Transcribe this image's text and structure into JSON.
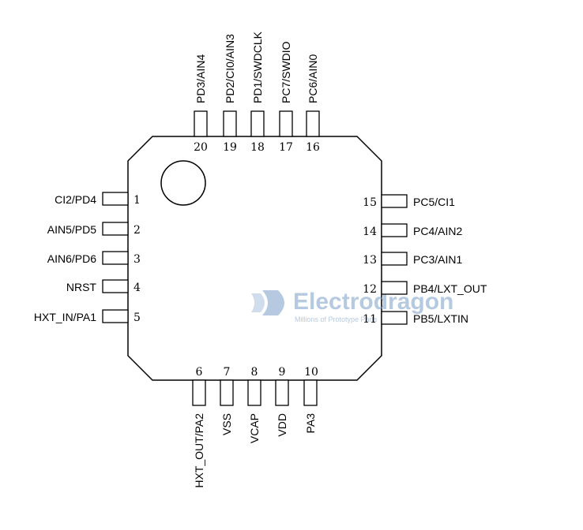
{
  "pins": [
    {
      "num": "1",
      "name": "CI2/PD4"
    },
    {
      "num": "2",
      "name": "AIN5/PD5"
    },
    {
      "num": "3",
      "name": "AIN6/PD6"
    },
    {
      "num": "4",
      "name": "NRST"
    },
    {
      "num": "5",
      "name": "HXT_IN/PA1"
    },
    {
      "num": "6",
      "name": "HXT_OUT/PA2"
    },
    {
      "num": "7",
      "name": "VSS"
    },
    {
      "num": "8",
      "name": "VCAP"
    },
    {
      "num": "9",
      "name": "VDD"
    },
    {
      "num": "10",
      "name": "PA3"
    },
    {
      "num": "11",
      "name": "PB5/LXTIN"
    },
    {
      "num": "12",
      "name": "PB4/LXT_OUT"
    },
    {
      "num": "13",
      "name": "PC3/AIN1"
    },
    {
      "num": "14",
      "name": "PC4/AIN2"
    },
    {
      "num": "15",
      "name": "PC5/CI1"
    },
    {
      "num": "16",
      "name": "PC6/AIN0"
    },
    {
      "num": "17",
      "name": "PC7/SWDIO"
    },
    {
      "num": "18",
      "name": "PD1/SWDCLK"
    },
    {
      "num": "19",
      "name": "PD2/CI0/AIN3"
    },
    {
      "num": "20",
      "name": "PD3/AIN4"
    }
  ],
  "watermark": {
    "title": "Electrodragon",
    "subtitle": "Millions of Prototype Parts",
    "color": "#7aa0c8"
  },
  "colors": {
    "outline": "#000000",
    "background": "#ffffff"
  }
}
